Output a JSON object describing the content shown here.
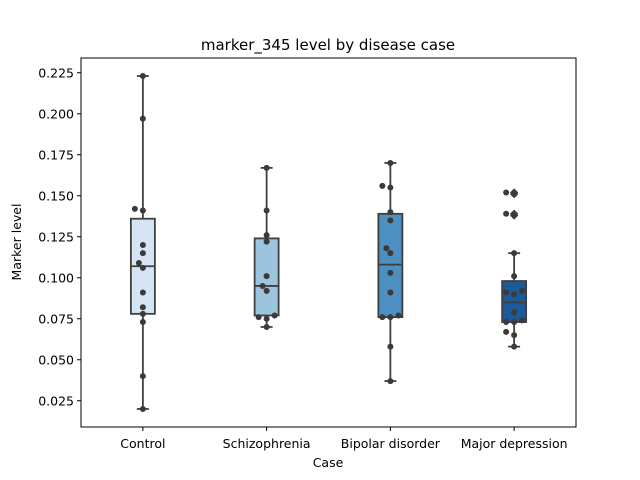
{
  "chart_data": {
    "type": "box",
    "title": "marker_345 level by disease case",
    "xlabel": "Case",
    "ylabel": "Marker level",
    "ylim": [
      0.009,
      0.234
    ],
    "yticks": [
      "0.025",
      "0.050",
      "0.075",
      "0.100",
      "0.125",
      "0.150",
      "0.175",
      "0.200",
      "0.225"
    ],
    "yticks_values": [
      0.025,
      0.05,
      0.075,
      0.1,
      0.125,
      0.15,
      0.175,
      0.2,
      0.225
    ],
    "categories": [
      "Control",
      "Schizophrenia",
      "Bipolar disorder",
      "Major depression"
    ],
    "colors": [
      "#d6e5f3",
      "#9cc4dd",
      "#4c8fc0",
      "#1c5a99"
    ],
    "grid": false,
    "boxes": [
      {
        "category": "Control",
        "whisker_low": 0.02,
        "q1": 0.078,
        "median": 0.107,
        "q3": 0.136,
        "whisker_high": 0.223,
        "outliers": []
      },
      {
        "category": "Schizophrenia",
        "whisker_low": 0.07,
        "q1": 0.077,
        "median": 0.095,
        "q3": 0.124,
        "whisker_high": 0.167,
        "outliers": []
      },
      {
        "category": "Bipolar disorder",
        "whisker_low": 0.037,
        "q1": 0.076,
        "median": 0.108,
        "q3": 0.139,
        "whisker_high": 0.17,
        "outliers": []
      },
      {
        "category": "Major depression",
        "whisker_low": 0.058,
        "q1": 0.073,
        "median": 0.085,
        "q3": 0.098,
        "whisker_high": 0.115,
        "outliers": [
          0.152,
          0.151,
          0.139,
          0.138
        ]
      }
    ],
    "points": [
      [
        0.223,
        0.197,
        0.142,
        0.141,
        0.12,
        0.115,
        0.109,
        0.106,
        0.091,
        0.082,
        0.078,
        0.073,
        0.04,
        0.02
      ],
      [
        0.167,
        0.141,
        0.126,
        0.122,
        0.101,
        0.095,
        0.092,
        0.077,
        0.076,
        0.075,
        0.07
      ],
      [
        0.17,
        0.156,
        0.155,
        0.14,
        0.135,
        0.118,
        0.115,
        0.103,
        0.091,
        0.077,
        0.076,
        0.076,
        0.058,
        0.037
      ],
      [
        0.152,
        0.151,
        0.139,
        0.138,
        0.115,
        0.101,
        0.092,
        0.091,
        0.09,
        0.079,
        0.074,
        0.073,
        0.073,
        0.067,
        0.065,
        0.058
      ]
    ]
  }
}
